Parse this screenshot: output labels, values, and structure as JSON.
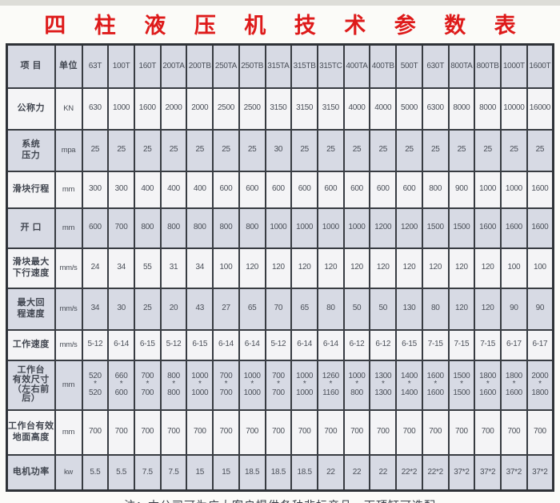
{
  "page": {
    "title": "四 柱 液 压 机 技 术 参 数 表",
    "note": "注：本公司可为广大客户提供各种非标产品，下顶缸可选配"
  },
  "colors": {
    "title_red": "#de1a1a",
    "row_light": "#f4f4f6",
    "row_shaded": "#d7dae4",
    "grid_border": "#383c42",
    "cell_text": "#4a4f58"
  },
  "table": {
    "header": {
      "item": "项 目",
      "unit": "单位",
      "models": [
        "63T",
        "100T",
        "160T",
        "200TA",
        "200TB",
        "250TA",
        "250TB",
        "315TA",
        "315TB",
        "315TC",
        "400TA",
        "400TB",
        "500T",
        "630T",
        "800TA",
        "800TB",
        "1000T",
        "1600T"
      ]
    },
    "rows": [
      {
        "label": "公称力",
        "unit": "KN",
        "values": [
          "630",
          "1000",
          "1600",
          "2000",
          "2000",
          "2500",
          "2500",
          "3150",
          "3150",
          "3150",
          "4000",
          "4000",
          "5000",
          "6300",
          "8000",
          "8000",
          "10000",
          "16000"
        ]
      },
      {
        "label": "系统\n压力",
        "unit": "mpa",
        "values": [
          "25",
          "25",
          "25",
          "25",
          "25",
          "25",
          "25",
          "30",
          "25",
          "25",
          "25",
          "25",
          "25",
          "25",
          "25",
          "25",
          "25",
          "25"
        ]
      },
      {
        "label": "滑块行程",
        "unit": "mm",
        "values": [
          "300",
          "300",
          "400",
          "400",
          "400",
          "600",
          "600",
          "600",
          "600",
          "600",
          "600",
          "600",
          "600",
          "800",
          "900",
          "1000",
          "1000",
          "1600"
        ]
      },
      {
        "label": "开  口",
        "unit": "mm",
        "values": [
          "600",
          "700",
          "800",
          "800",
          "800",
          "800",
          "800",
          "1000",
          "1000",
          "1000",
          "1000",
          "1200",
          "1200",
          "1500",
          "1500",
          "1600",
          "1600",
          "1600"
        ]
      },
      {
        "label": "滑块最大\n下行速度",
        "unit": "mm/s",
        "values": [
          "24",
          "34",
          "55",
          "31",
          "34",
          "100",
          "120",
          "120",
          "120",
          "120",
          "120",
          "120",
          "120",
          "120",
          "120",
          "120",
          "100",
          "100"
        ]
      },
      {
        "label": "最大回\n程速度",
        "unit": "mm/s",
        "values": [
          "34",
          "30",
          "25",
          "20",
          "43",
          "27",
          "65",
          "70",
          "65",
          "80",
          "50",
          "50",
          "130",
          "80",
          "120",
          "120",
          "90",
          "90"
        ]
      },
      {
        "label": "工作速度",
        "unit": "mm/s",
        "values": [
          "5-12",
          "6-14",
          "6-15",
          "5-12",
          "6-15",
          "6-14",
          "6-14",
          "5-12",
          "6-14",
          "6-14",
          "6-12",
          "6-12",
          "6-15",
          "7-15",
          "7-15",
          "7-15",
          "6-17",
          "6-17"
        ]
      },
      {
        "label": "工作台\n有效尺寸\n（左右前后）",
        "unit": "mm",
        "values": [
          "520\n*\n520",
          "660\n*\n600",
          "700\n*\n700",
          "800\n*\n800",
          "1000\n*\n1000",
          "700\n*\n700",
          "1000\n*\n1000",
          "700\n*\n700",
          "1000\n*\n1000",
          "1260\n*\n1160",
          "1000\n*\n800",
          "1300\n*\n1300",
          "1400\n*\n1400",
          "1600\n*\n1600",
          "1500\n*\n1500",
          "1800\n*\n1600",
          "1800\n*\n1600",
          "2000\n*\n1800"
        ]
      },
      {
        "label": "工作台有效\n地面高度",
        "unit": "mm",
        "values": [
          "700",
          "700",
          "700",
          "700",
          "700",
          "700",
          "700",
          "700",
          "700",
          "700",
          "700",
          "700",
          "700",
          "700",
          "700",
          "700",
          "700",
          "700"
        ]
      },
      {
        "label": "电机功率",
        "unit": "kw",
        "values": [
          "5.5",
          "5.5",
          "7.5",
          "7.5",
          "15",
          "15",
          "18.5",
          "18.5",
          "18.5",
          "22",
          "22",
          "22",
          "22*2",
          "22*2",
          "37*2",
          "37*2",
          "37*2",
          "37*2"
        ]
      }
    ]
  }
}
